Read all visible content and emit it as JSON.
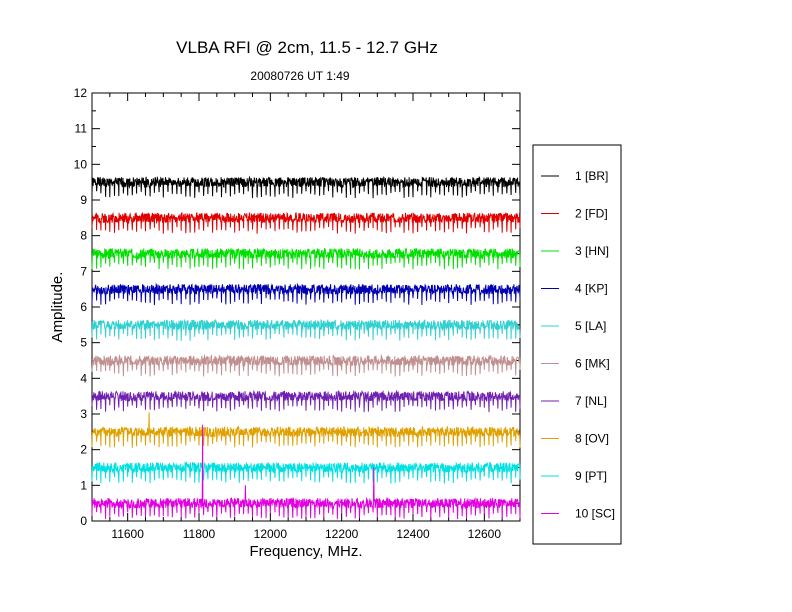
{
  "chart_data": {
    "type": "line",
    "title": "VLBA RFI @ 2cm, 11.5 - 12.7 GHz",
    "subtitle": "20080726   UT 1:49",
    "xlabel": "Frequency, MHz.",
    "ylabel": "Amplitude.",
    "xlim": [
      11500,
      12700
    ],
    "ylim": [
      0,
      12
    ],
    "xticks": [
      11600,
      11800,
      12000,
      12200,
      12400,
      12600
    ],
    "yticks": [
      0,
      1,
      2,
      3,
      4,
      5,
      6,
      7,
      8,
      9,
      10,
      11,
      12
    ],
    "legend_position": "right",
    "grid": false,
    "series": [
      {
        "name": "1 [BR]",
        "color": "#000000",
        "baseline": 9.5,
        "spikes": []
      },
      {
        "name": "2 [FD]",
        "color": "#e00000",
        "baseline": 8.5,
        "spikes": []
      },
      {
        "name": "3 [HN]",
        "color": "#00e000",
        "baseline": 7.5,
        "spikes": []
      },
      {
        "name": "4 [KP]",
        "color": "#0000b0",
        "baseline": 6.5,
        "spikes": []
      },
      {
        "name": "5 [LA]",
        "color": "#30d0d0",
        "baseline": 5.5,
        "spikes": []
      },
      {
        "name": "6 [MK]",
        "color": "#c09090",
        "baseline": 4.5,
        "spikes": []
      },
      {
        "name": "7 [NL]",
        "color": "#7020b0",
        "baseline": 3.5,
        "spikes": []
      },
      {
        "name": "8 [OV]",
        "color": "#e0a000",
        "baseline": 2.5,
        "spikes": [
          {
            "x": 11660,
            "y": 3.05
          }
        ]
      },
      {
        "name": "9 [PT]",
        "color": "#00e0e0",
        "baseline": 1.5,
        "spikes": []
      },
      {
        "name": "10 [SC]",
        "color": "#e000e0",
        "baseline": 0.5,
        "spikes": [
          {
            "x": 11810,
            "y": 2.7
          },
          {
            "x": 11930,
            "y": 1.0
          },
          {
            "x": 12290,
            "y": 1.5
          }
        ]
      }
    ]
  }
}
